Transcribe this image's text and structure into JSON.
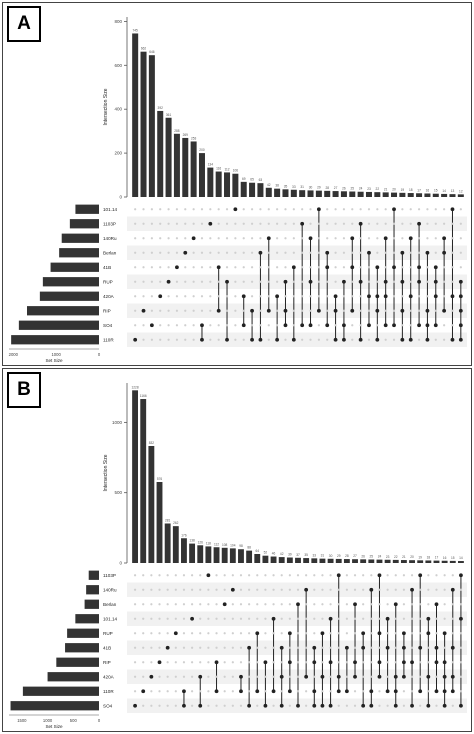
{
  "panels": [
    {
      "label": "A",
      "chart_data": {
        "type": "bar",
        "subtype": "upset",
        "ylabel": "Intersection Size",
        "yticks": [
          0,
          200,
          400,
          600,
          800
        ],
        "ylim": [
          0,
          820
        ],
        "set_size_label": "Set Size",
        "set_size_ticks": [
          2000,
          1000,
          0
        ],
        "set_size_max": 2100,
        "sets": [
          "101.14",
          "1103P",
          "140Ru",
          "Berlan",
          "41B",
          "RUP",
          "420A",
          "RIP",
          "SO4",
          "110R"
        ],
        "set_sizes": [
          550,
          680,
          870,
          930,
          1130,
          1310,
          1380,
          1680,
          1870,
          2050
        ],
        "intersections": [
          {
            "value": 745,
            "sets": [
              "110R"
            ]
          },
          {
            "value": 662,
            "sets": [
              "RIP"
            ]
          },
          {
            "value": 646,
            "sets": [
              "SO4"
            ]
          },
          {
            "value": 392,
            "sets": [
              "420A"
            ]
          },
          {
            "value": 361,
            "sets": [
              "RUP"
            ]
          },
          {
            "value": 288,
            "sets": [
              "41B"
            ]
          },
          {
            "value": 269,
            "sets": [
              "Berlan"
            ]
          },
          {
            "value": 253,
            "sets": [
              "140Ru"
            ]
          },
          {
            "value": 200,
            "sets": [
              "110R",
              "SO4"
            ]
          },
          {
            "value": 134,
            "sets": [
              "1103P"
            ]
          },
          {
            "value": 116,
            "sets": [
              "41B",
              "RIP"
            ]
          },
          {
            "value": 112,
            "sets": [
              "RUP",
              "110R"
            ]
          },
          {
            "value": 106,
            "sets": [
              "101.14"
            ]
          },
          {
            "value": 69,
            "sets": [
              "420A",
              "SO4"
            ]
          },
          {
            "value": 65,
            "sets": [
              "RIP",
              "110R"
            ]
          },
          {
            "value": 63,
            "sets": [
              "Berlan",
              "110R"
            ]
          },
          {
            "value": 42,
            "sets": [
              "140Ru",
              "RIP"
            ]
          },
          {
            "value": 38,
            "sets": [
              "420A",
              "110R"
            ]
          },
          {
            "value": 35,
            "sets": [
              "RUP",
              "RIP",
              "SO4"
            ]
          },
          {
            "value": 33,
            "sets": [
              "41B",
              "110R"
            ]
          },
          {
            "value": 31,
            "sets": [
              "1103P",
              "SO4"
            ]
          },
          {
            "value": 30,
            "sets": [
              "140Ru",
              "RUP",
              "SO4"
            ]
          },
          {
            "value": 29,
            "sets": [
              "101.14",
              "RIP"
            ]
          },
          {
            "value": 28,
            "sets": [
              "Berlan",
              "41B",
              "SO4"
            ]
          },
          {
            "value": 27,
            "sets": [
              "420A",
              "RIP",
              "110R"
            ]
          },
          {
            "value": 26,
            "sets": [
              "RUP",
              "SO4",
              "110R"
            ]
          },
          {
            "value": 25,
            "sets": [
              "140Ru",
              "41B",
              "RIP"
            ]
          },
          {
            "value": 24,
            "sets": [
              "1103P",
              "RUP",
              "110R"
            ]
          },
          {
            "value": 23,
            "sets": [
              "Berlan",
              "420A",
              "SO4"
            ]
          },
          {
            "value": 22,
            "sets": [
              "41B",
              "420A",
              "RIP",
              "110R"
            ]
          },
          {
            "value": 21,
            "sets": [
              "140Ru",
              "RUP",
              "420A",
              "SO4"
            ]
          },
          {
            "value": 20,
            "sets": [
              "101.14",
              "41B",
              "SO4"
            ]
          },
          {
            "value": 19,
            "sets": [
              "Berlan",
              "RUP",
              "RIP",
              "110R"
            ]
          },
          {
            "value": 18,
            "sets": [
              "140Ru",
              "420A",
              "110R"
            ]
          },
          {
            "value": 17,
            "sets": [
              "1103P",
              "41B",
              "RUP",
              "SO4"
            ]
          },
          {
            "value": 16,
            "sets": [
              "Berlan",
              "RIP",
              "SO4",
              "110R"
            ]
          },
          {
            "value": 15,
            "sets": [
              "41B",
              "RUP",
              "420A",
              "SO4"
            ]
          },
          {
            "value": 14,
            "sets": [
              "140Ru",
              "Berlan",
              "RIP"
            ]
          },
          {
            "value": 13,
            "sets": [
              "101.14",
              "420A",
              "110R"
            ]
          },
          {
            "value": 12,
            "sets": [
              "RUP",
              "420A",
              "RIP",
              "SO4",
              "110R"
            ]
          }
        ]
      }
    },
    {
      "label": "B",
      "chart_data": {
        "type": "bar",
        "subtype": "upset",
        "ylabel": "Intersection Size",
        "yticks": [
          0,
          500,
          1000
        ],
        "ylim": [
          0,
          1280
        ],
        "set_size_label": "Set Size",
        "set_size_ticks": [
          1500,
          1000,
          500,
          0
        ],
        "set_size_max": 1750,
        "sets": [
          "1103P",
          "140Ru",
          "Berlan",
          "101.14",
          "RUP",
          "41B",
          "RIP",
          "420A",
          "110R",
          "SO4"
        ],
        "set_sizes": [
          200,
          250,
          280,
          460,
          620,
          660,
          830,
          1000,
          1480,
          1720
        ],
        "intersections": [
          {
            "value": 1228,
            "sets": [
              "SO4"
            ]
          },
          {
            "value": 1166,
            "sets": [
              "110R"
            ]
          },
          {
            "value": 832,
            "sets": [
              "420A"
            ]
          },
          {
            "value": 576,
            "sets": [
              "RIP"
            ]
          },
          {
            "value": 281,
            "sets": [
              "41B"
            ]
          },
          {
            "value": 262,
            "sets": [
              "RUP"
            ]
          },
          {
            "value": 176,
            "sets": [
              "SO4",
              "110R"
            ]
          },
          {
            "value": 138,
            "sets": [
              "101.14"
            ]
          },
          {
            "value": 126,
            "sets": [
              "420A",
              "SO4"
            ]
          },
          {
            "value": 118,
            "sets": [
              "1103P"
            ]
          },
          {
            "value": 112,
            "sets": [
              "RIP",
              "110R"
            ]
          },
          {
            "value": 108,
            "sets": [
              "Berlan"
            ]
          },
          {
            "value": 104,
            "sets": [
              "140Ru"
            ]
          },
          {
            "value": 98,
            "sets": [
              "420A",
              "110R"
            ]
          },
          {
            "value": 88,
            "sets": [
              "41B",
              "SO4"
            ]
          },
          {
            "value": 64,
            "sets": [
              "RUP",
              "110R"
            ]
          },
          {
            "value": 52,
            "sets": [
              "RIP",
              "SO4"
            ]
          },
          {
            "value": 46,
            "sets": [
              "101.14",
              "110R"
            ]
          },
          {
            "value": 42,
            "sets": [
              "41B",
              "420A",
              "SO4"
            ]
          },
          {
            "value": 39,
            "sets": [
              "RUP",
              "RIP",
              "110R"
            ]
          },
          {
            "value": 37,
            "sets": [
              "Berlan",
              "SO4"
            ]
          },
          {
            "value": 35,
            "sets": [
              "140Ru",
              "420A"
            ]
          },
          {
            "value": 33,
            "sets": [
              "41B",
              "RIP",
              "110R",
              "SO4"
            ]
          },
          {
            "value": 31,
            "sets": [
              "RUP",
              "420A",
              "SO4"
            ]
          },
          {
            "value": 30,
            "sets": [
              "101.14",
              "RIP",
              "SO4"
            ]
          },
          {
            "value": 29,
            "sets": [
              "1103P",
              "420A",
              "110R"
            ]
          },
          {
            "value": 28,
            "sets": [
              "41B",
              "110R"
            ]
          },
          {
            "value": 27,
            "sets": [
              "Berlan",
              "RIP",
              "420A"
            ]
          },
          {
            "value": 26,
            "sets": [
              "RUP",
              "41B",
              "SO4"
            ]
          },
          {
            "value": 25,
            "sets": [
              "140Ru",
              "110R",
              "SO4"
            ]
          },
          {
            "value": 24,
            "sets": [
              "1103P",
              "RUP",
              "RIP",
              "420A"
            ]
          },
          {
            "value": 23,
            "sets": [
              "101.14",
              "41B",
              "110R"
            ]
          },
          {
            "value": 22,
            "sets": [
              "Berlan",
              "420A",
              "110R",
              "SO4"
            ]
          },
          {
            "value": 21,
            "sets": [
              "RUP",
              "41B",
              "RIP",
              "420A"
            ]
          },
          {
            "value": 20,
            "sets": [
              "140Ru",
              "RIP",
              "SO4"
            ]
          },
          {
            "value": 19,
            "sets": [
              "1103P",
              "41B",
              "110R"
            ]
          },
          {
            "value": 18,
            "sets": [
              "101.14",
              "RUP",
              "420A",
              "SO4"
            ]
          },
          {
            "value": 17,
            "sets": [
              "Berlan",
              "41B",
              "RIP",
              "110R"
            ]
          },
          {
            "value": 16,
            "sets": [
              "RUP",
              "RIP",
              "420A",
              "110R",
              "SO4"
            ]
          },
          {
            "value": 15,
            "sets": [
              "140Ru",
              "41B",
              "420A",
              "110R"
            ]
          },
          {
            "value": 14,
            "sets": [
              "1103P",
              "101.14",
              "SO4"
            ]
          }
        ]
      }
    }
  ],
  "colors": {
    "bar": "#333333",
    "dot_on": "#222222",
    "dot_off": "#cfcfcf",
    "stripe": "#f1f1f1",
    "axis": "#555555"
  }
}
